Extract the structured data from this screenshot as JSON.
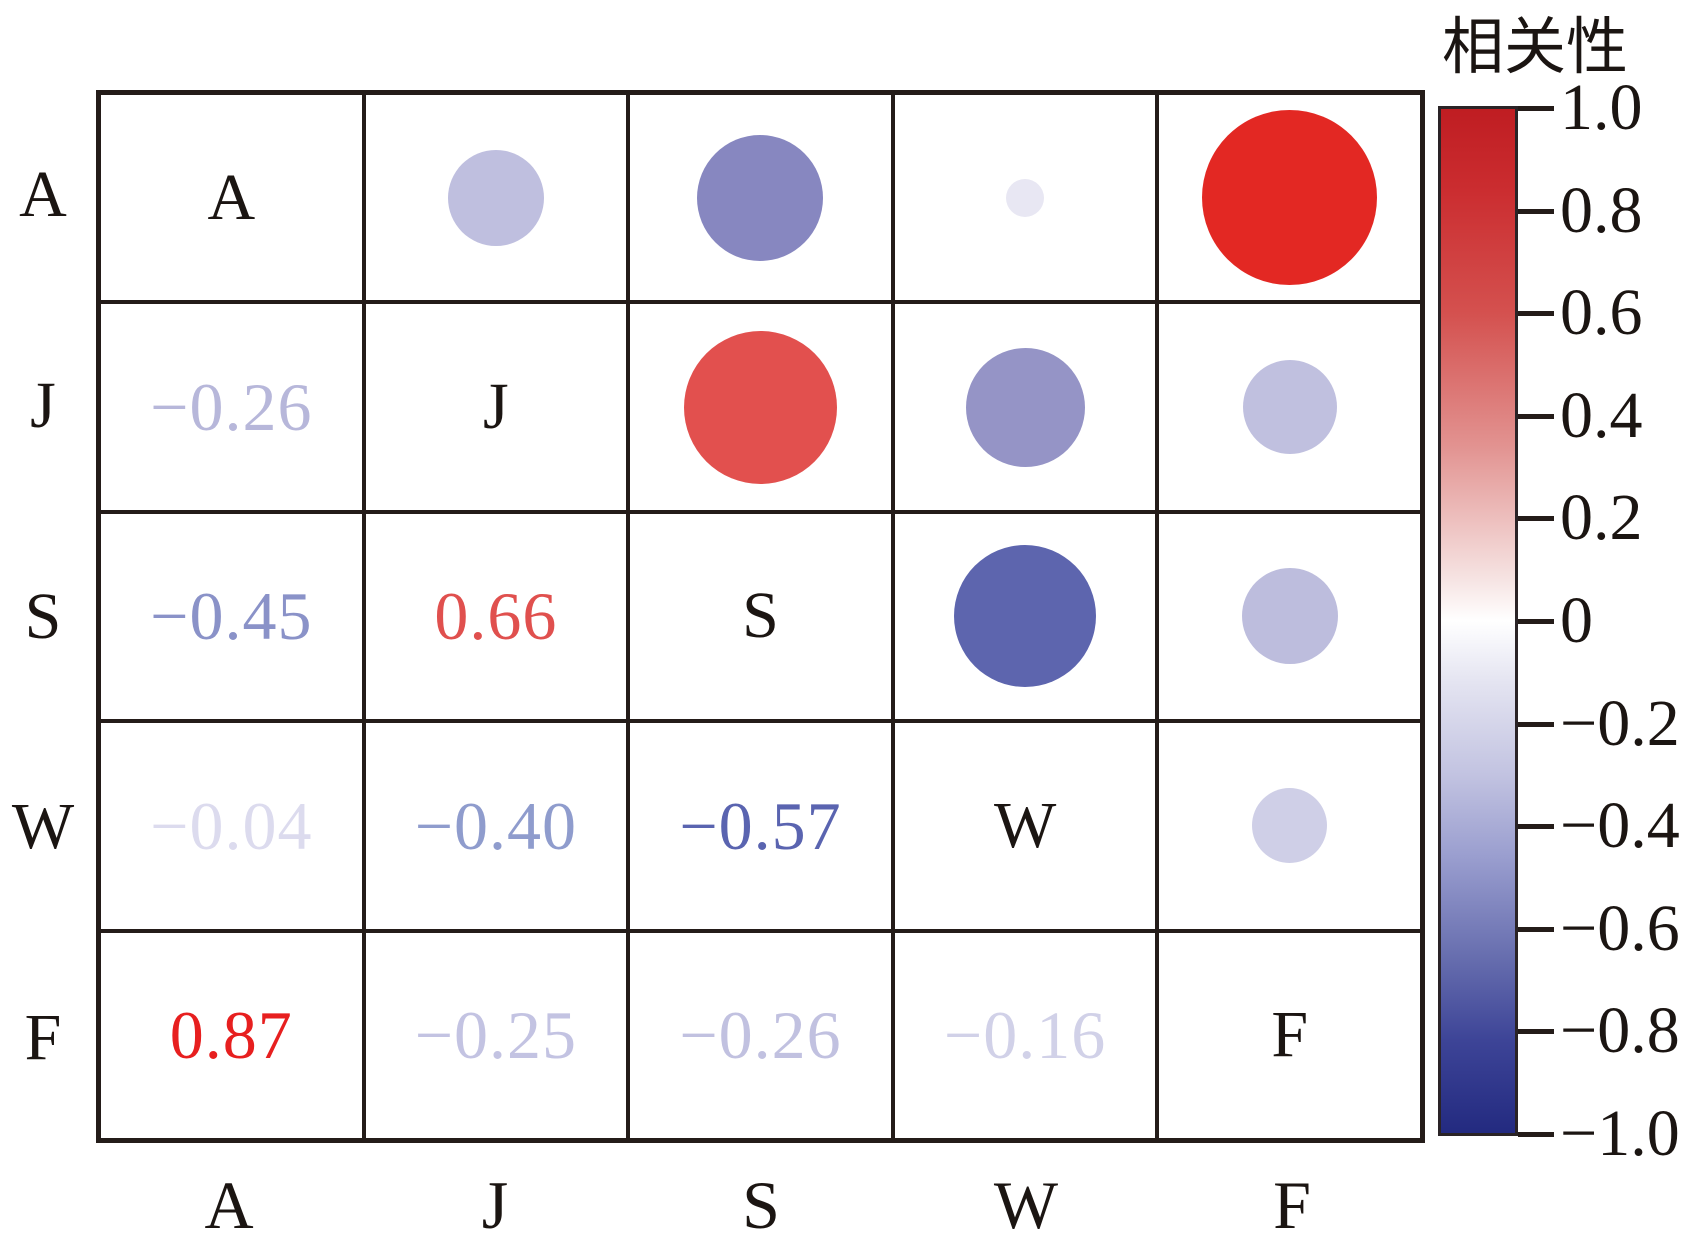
{
  "title": "相关性",
  "chart_data": {
    "type": "correlation-matrix",
    "variables": [
      "A",
      "J",
      "S",
      "W",
      "F"
    ],
    "diagonal_labels": [
      "A",
      "J",
      "S",
      "W",
      "F"
    ],
    "axis_left_labels": [
      "A",
      "J",
      "S",
      "W",
      "F"
    ],
    "axis_bottom_labels": [
      "A",
      "J",
      "S",
      "W",
      "F"
    ],
    "lower_triangle_values": [
      {
        "row": "J",
        "col": "A",
        "value": -0.26,
        "display": "−0.26",
        "color": "#b7b7da"
      },
      {
        "row": "S",
        "col": "A",
        "value": -0.45,
        "display": "−0.45",
        "color": "#8a92c8"
      },
      {
        "row": "S",
        "col": "J",
        "value": 0.66,
        "display": "0.66",
        "color": "#e0504e"
      },
      {
        "row": "W",
        "col": "A",
        "value": -0.04,
        "display": "−0.04",
        "color": "#dcdbee"
      },
      {
        "row": "W",
        "col": "J",
        "value": -0.4,
        "display": "−0.40",
        "color": "#8f9ccd"
      },
      {
        "row": "W",
        "col": "S",
        "value": -0.57,
        "display": "−0.57",
        "color": "#5a64b0"
      },
      {
        "row": "F",
        "col": "A",
        "value": 0.87,
        "display": "0.87",
        "color": "#e71f1f"
      },
      {
        "row": "F",
        "col": "J",
        "value": -0.25,
        "display": "−0.25",
        "color": "#c3c3e2"
      },
      {
        "row": "F",
        "col": "S",
        "value": -0.26,
        "display": "−0.26",
        "color": "#c1c1e0"
      },
      {
        "row": "F",
        "col": "W",
        "value": -0.16,
        "display": "−0.16",
        "color": "#d1d1e8"
      }
    ],
    "upper_triangle_circles": [
      {
        "row": "A",
        "col": "J",
        "value": -0.26,
        "color": "#bfbfdf"
      },
      {
        "row": "A",
        "col": "S",
        "value": -0.45,
        "color": "#8787c0"
      },
      {
        "row": "A",
        "col": "W",
        "value": -0.04,
        "color": "#e8e7f3"
      },
      {
        "row": "A",
        "col": "F",
        "value": 0.87,
        "color": "#e32823"
      },
      {
        "row": "J",
        "col": "S",
        "value": 0.66,
        "color": "#e2504e"
      },
      {
        "row": "J",
        "col": "W",
        "value": -0.4,
        "color": "#9594c6"
      },
      {
        "row": "J",
        "col": "F",
        "value": -0.25,
        "color": "#c0c0df"
      },
      {
        "row": "S",
        "col": "W",
        "value": -0.57,
        "color": "#5d65ae"
      },
      {
        "row": "S",
        "col": "F",
        "value": -0.26,
        "color": "#bdbddd"
      },
      {
        "row": "W",
        "col": "F",
        "value": -0.16,
        "color": "#cfcfe7"
      }
    ],
    "colorbar": {
      "title": "相关性",
      "range": [
        -1,
        1
      ],
      "tick_labels": [
        "1.0",
        "0.8",
        "0.6",
        "0.4",
        "0.2",
        "0",
        "−0.2",
        "−0.4",
        "−0.6",
        "−0.8",
        "−1.0"
      ],
      "color_positive": "#bf1d22",
      "color_zero": "#ffffff",
      "color_negative": "#232a80"
    },
    "layout": {
      "grid": true,
      "legend_position": "right",
      "circle_size_rule": "diameter proportional to sqrt(|r|)"
    }
  }
}
